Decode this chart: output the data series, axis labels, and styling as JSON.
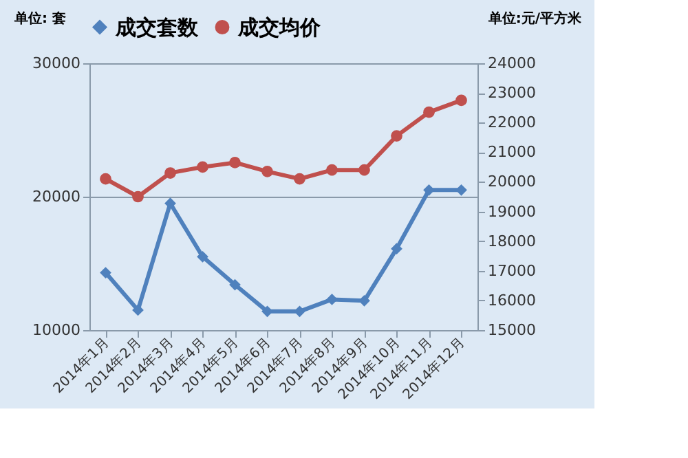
{
  "chart_data": {
    "type": "line",
    "categories": [
      "2014年1月",
      "2014年2月",
      "2014年3月",
      "2014年4月",
      "2014年5月",
      "2014年6月",
      "2014年7月",
      "2014年8月",
      "2014年9月",
      "2014年10月",
      "2014年11月",
      "2014年12月"
    ],
    "series": [
      {
        "name": "成交套数",
        "color": "#4f81bd",
        "marker": "diamond",
        "values": [
          14300,
          11500,
          19500,
          15500,
          13400,
          11400,
          11400,
          12300,
          12200,
          16100,
          20500,
          20500
        ]
      },
      {
        "name": "成交均价",
        "color": "#c0504d",
        "marker": "circle",
        "axis": "y2",
        "values": [
          20100,
          19500,
          20300,
          20500,
          20650,
          20350,
          20100,
          20400,
          20400,
          21550,
          22350,
          22750
        ]
      }
    ],
    "ylabel": "单位: 套",
    "y2label": "单位:元/平方米",
    "ylim": [
      10000,
      30000
    ],
    "yticks": [
      10000,
      20000,
      30000
    ],
    "y2lim": [
      15000,
      24000
    ],
    "y2ticks": [
      15000,
      16000,
      17000,
      18000,
      19000,
      20000,
      21000,
      22000,
      23000,
      24000
    ],
    "grid": "y",
    "legend": "top",
    "line_style": "solid"
  }
}
